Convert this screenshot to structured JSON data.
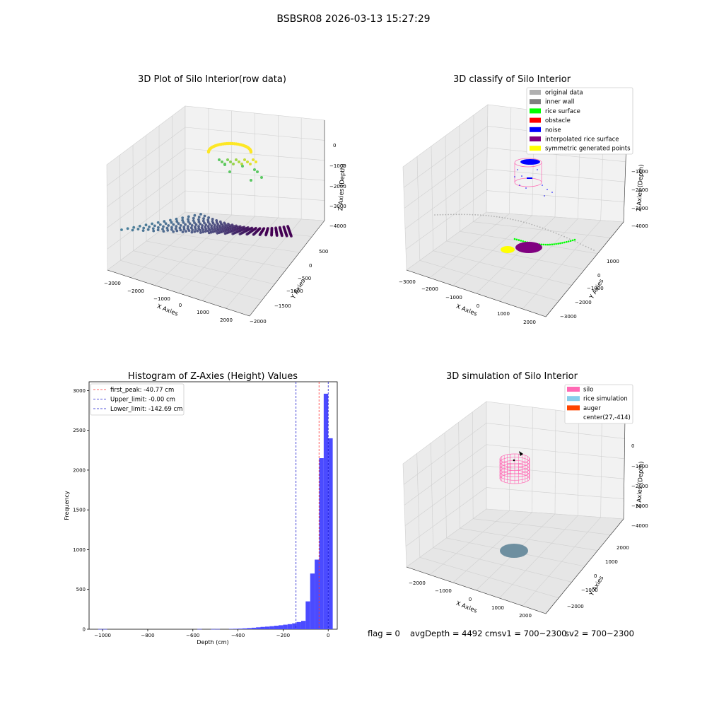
{
  "suptitle": "BSBSR08 2026-03-13 15:27:29",
  "colors": {
    "grid": "#d0d0d0",
    "pane": "#f2f2f2",
    "pane_side": "#ebebeb",
    "pane_bottom": "#e6e6e6",
    "hist_bar": "#4b4bff",
    "peak_line": "#ff3333",
    "limit_line": "#1a1acc",
    "silo": "#ff69b4",
    "rice_sim": "#87ceeb",
    "auger": "#ff4500",
    "rice_disk": "#6e8fa0",
    "viridis_low": "#2f6f8e",
    "viridis_mid": "#5cc863",
    "viridis_high": "#fde725",
    "purple": "#440154",
    "original": "#b0b0b0",
    "inner_wall": "#808080",
    "rice_surface": "#00ff00",
    "obstacle": "#ff0000",
    "noise": "#0000ff",
    "interpolated": "#800080",
    "symmetric": "#ffff00"
  },
  "chart_data": [
    {
      "id": "raw",
      "type": "scatter",
      "title": "3D Plot of Silo Interior(row data)",
      "xlabel": "X Axies",
      "ylabel": "Y Axies",
      "zlabel": "Z Axies (Depth)",
      "x_ticks": [
        "−3000",
        "−2000",
        "−1000",
        "0",
        "1000",
        "2000"
      ],
      "y_ticks": [
        "500",
        "0",
        "−500",
        "−1000",
        "−1500",
        "−2000"
      ],
      "z_ticks": [
        "0",
        "−1000",
        "−2000",
        "−3000",
        "−4000"
      ]
    },
    {
      "id": "classify",
      "type": "scatter",
      "title": "3D classify of Silo Interior",
      "xlabel": "X Axies",
      "ylabel": "Y Axies",
      "zlabel": "Z Axies (Depth)",
      "x_ticks": [
        "−3000",
        "−2000",
        "−1000",
        "0",
        "1000",
        "2000"
      ],
      "y_ticks": [
        "1000",
        "0",
        "−1000",
        "−2000",
        "−3000"
      ],
      "z_ticks": [
        "−1000",
        "−2000",
        "−3000",
        "−4000"
      ],
      "legend": [
        {
          "label": "original data",
          "color": "#b0b0b0"
        },
        {
          "label": "inner wall",
          "color": "#808080"
        },
        {
          "label": "rice surface",
          "color": "#00ff00"
        },
        {
          "label": "obstacle",
          "color": "#ff0000"
        },
        {
          "label": "noise",
          "color": "#0000ff"
        },
        {
          "label": "interpolated rice surface",
          "color": "#800080"
        },
        {
          "label": "symmetric generated points",
          "color": "#ffff00"
        }
      ]
    },
    {
      "id": "hist",
      "type": "bar",
      "title": "Histogram of Z-Axies (Height) Values",
      "xlabel": "Depth (cm)",
      "ylabel": "Frequency",
      "xlim": [
        -1060,
        40
      ],
      "ylim": [
        0,
        3110
      ],
      "x_ticks": [
        -1000,
        -800,
        -600,
        -400,
        -200,
        0
      ],
      "x_tick_labels": [
        "−1000",
        "−800",
        "−600",
        "−400",
        "−200",
        "0"
      ],
      "y_ticks": [
        0,
        500,
        1000,
        1500,
        2000,
        2500,
        3000
      ],
      "bin_width": 20,
      "bins": [
        {
          "start": -1020,
          "value": 2
        },
        {
          "start": -1000,
          "value": 2
        },
        {
          "start": -580,
          "value": 3
        },
        {
          "start": -520,
          "value": 2
        },
        {
          "start": -500,
          "value": 3
        },
        {
          "start": -440,
          "value": 5
        },
        {
          "start": -420,
          "value": 6
        },
        {
          "start": -400,
          "value": 8
        },
        {
          "start": -380,
          "value": 11
        },
        {
          "start": -360,
          "value": 15
        },
        {
          "start": -340,
          "value": 19
        },
        {
          "start": -320,
          "value": 24
        },
        {
          "start": -300,
          "value": 29
        },
        {
          "start": -280,
          "value": 33
        },
        {
          "start": -260,
          "value": 38
        },
        {
          "start": -240,
          "value": 44
        },
        {
          "start": -220,
          "value": 50
        },
        {
          "start": -200,
          "value": 57
        },
        {
          "start": -180,
          "value": 64
        },
        {
          "start": -160,
          "value": 74
        },
        {
          "start": -140,
          "value": 90
        },
        {
          "start": -120,
          "value": 105
        },
        {
          "start": -100,
          "value": 350
        },
        {
          "start": -80,
          "value": 700
        },
        {
          "start": -60,
          "value": 875
        },
        {
          "start": -40,
          "value": 2150
        },
        {
          "start": -20,
          "value": 2960
        },
        {
          "start": 0,
          "value": 2400
        }
      ],
      "vlines": [
        {
          "label": "first_peak: -40.77 cm",
          "x": -40.77,
          "color": "#ff3333"
        },
        {
          "label": "Upper_limit: -0.00 cm",
          "x": 0,
          "color": "#1a1acc"
        },
        {
          "label": "Lower_limit: -142.69 cm",
          "x": -142.69,
          "color": "#1a1acc"
        }
      ]
    },
    {
      "id": "simulation",
      "type": "scatter",
      "title": "3D simulation of Silo Interior",
      "xlabel": "X Axies",
      "ylabel": "Y Axies",
      "zlabel": "Z Axies (Depth)",
      "x_ticks": [
        "−2000",
        "−1000",
        "0",
        "1000",
        "2000"
      ],
      "y_ticks": [
        "2000",
        "1000",
        "0",
        "−1000",
        "−2000"
      ],
      "z_ticks": [
        "0",
        "−1000",
        "−2000",
        "−3000",
        "−4000"
      ],
      "legend": [
        {
          "label": "silo",
          "color": "#ff69b4"
        },
        {
          "label": "rice simulation",
          "color": "#87ceeb"
        },
        {
          "label": "auger",
          "color": "#ff4500"
        },
        {
          "label": "center(27,-414)",
          "color": ""
        }
      ]
    }
  ],
  "footer": {
    "flag": "flag = 0",
    "avg": "avgDepth = 4492 cmsv1 = 700~2300",
    "sv2": "sv2 = 700~2300"
  }
}
